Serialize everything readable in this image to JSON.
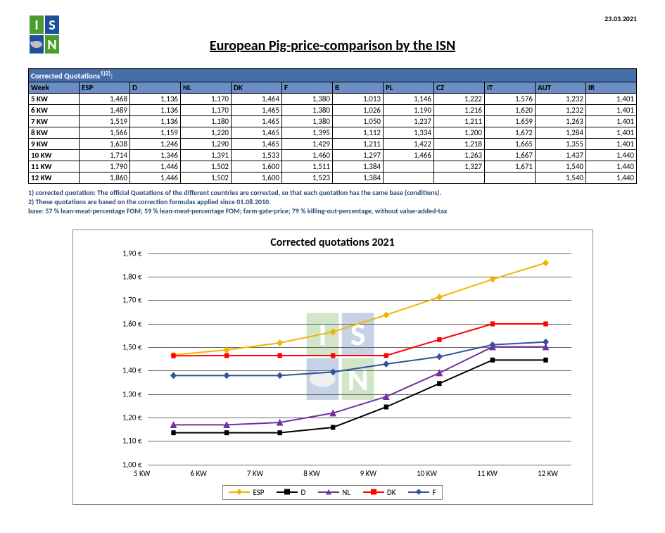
{
  "date": "23.03.2021",
  "title": "European Pig-price-comparison by the ISN",
  "table": {
    "top_label": "Corrected Quotations",
    "top_super": "1)2)",
    "columns": [
      "Week",
      "ESP",
      "D",
      "NL",
      "DK",
      "F",
      "B",
      "PL",
      "CZ",
      "IT",
      "AUT",
      "IR"
    ],
    "rows": [
      [
        "5 KW",
        "1,468",
        "1,136",
        "1,170",
        "1,464",
        "1,380",
        "1,013",
        "1,146",
        "1,222",
        "1,576",
        "1,232",
        "1,401"
      ],
      [
        "6 KW",
        "1,489",
        "1,136",
        "1,170",
        "1,465",
        "1,380",
        "1,026",
        "1,190",
        "1,216",
        "1,620",
        "1,232",
        "1,401"
      ],
      [
        "7 KW",
        "1,519",
        "1,136",
        "1,180",
        "1,465",
        "1,380",
        "1,050",
        "1,237",
        "1,211",
        "1,659",
        "1,263",
        "1,401"
      ],
      [
        "8 KW",
        "1,566",
        "1,159",
        "1,220",
        "1,465",
        "1,395",
        "1,112",
        "1,334",
        "1,200",
        "1,672",
        "1,284",
        "1,401"
      ],
      [
        "9 KW",
        "1,638",
        "1,246",
        "1,290",
        "1,465",
        "1,429",
        "1,211",
        "1,422",
        "1,218",
        "1,665",
        "1,355",
        "1,401"
      ],
      [
        "10 KW",
        "1,714",
        "1,346",
        "1,391",
        "1,533",
        "1,460",
        "1,297",
        "1,466",
        "1,263",
        "1,667",
        "1,437",
        "1,440"
      ],
      [
        "11 KW",
        "1,790",
        "1,446",
        "1,502",
        "1,600",
        "1,511",
        "1,384",
        "",
        "1,327",
        "1,671",
        "1,540",
        "1,440"
      ],
      [
        "12 KW",
        "1,860",
        "1,446",
        "1,502",
        "1,600",
        "1,523",
        "1,384",
        "",
        "",
        "",
        "1,540",
        "1,440"
      ]
    ]
  },
  "footnotes": [
    "1) corrected quotation: The official Quotations of the different countries are corrected, so that each quotation has the same base (conditions).",
    "2) These quotations are based on the correction formulas applied since 01.08.2010.",
    "base: 57 % lean-meat-percentage FOM; 59 % lean-meat-percentage FOM; farm-gate-price; 79 % killing-out-percentage, without value-added-tax"
  ],
  "chart": {
    "title": "Corrected quotations 2021",
    "ylim": [
      1.0,
      1.9
    ],
    "ytick_step": 0.1,
    "y_format_suffix": " €",
    "categories": [
      "5 KW",
      "6 KW",
      "7 KW",
      "8 KW",
      "9 KW",
      "10 KW",
      "11 KW",
      "12 KW"
    ],
    "series": [
      {
        "name": "ESP",
        "color": "#f0b400",
        "marker": "diamond",
        "values": [
          1.468,
          1.489,
          1.519,
          1.566,
          1.638,
          1.714,
          1.79,
          1.86
        ]
      },
      {
        "name": "D",
        "color": "#000000",
        "marker": "square",
        "values": [
          1.136,
          1.136,
          1.136,
          1.159,
          1.246,
          1.346,
          1.446,
          1.446
        ]
      },
      {
        "name": "NL",
        "color": "#7030a0",
        "marker": "triangle",
        "values": [
          1.17,
          1.17,
          1.18,
          1.22,
          1.29,
          1.391,
          1.502,
          1.502
        ]
      },
      {
        "name": "DK",
        "color": "#ff0000",
        "marker": "square",
        "values": [
          1.464,
          1.465,
          1.465,
          1.465,
          1.465,
          1.533,
          1.6,
          1.6
        ]
      },
      {
        "name": "F",
        "color": "#2f5597",
        "marker": "diamond",
        "values": [
          1.38,
          1.38,
          1.38,
          1.395,
          1.429,
          1.46,
          1.511,
          1.523
        ]
      }
    ],
    "grid_color": "#666666",
    "background": "#ffffff",
    "line_width": 2,
    "marker_size": 5
  },
  "logo": {
    "letters": "ISN",
    "colors": {
      "green": "#4a9c2d",
      "blue": "#1f4e9c",
      "white": "#ffffff",
      "gray": "#c0c0c0"
    }
  }
}
